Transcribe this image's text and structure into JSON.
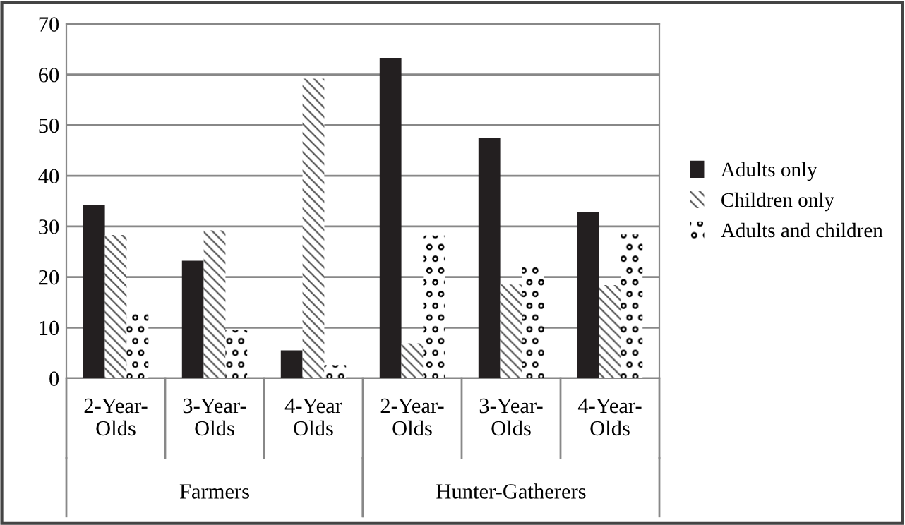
{
  "chart_data": {
    "type": "bar",
    "categories": [
      "2-Year-\nOlds",
      "3-Year-\nOlds",
      "4-Year\nOlds",
      "2-Year-\nOlds",
      "3-Year-\nOlds",
      "4-Year-\nOlds"
    ],
    "annotations": [
      "Farmers",
      "Hunter-Gatherers"
    ],
    "series": [
      {
        "name": "Adults only",
        "color": "#231f20",
        "values": [
          34.3,
          23.2,
          5.5,
          63.3,
          47.4,
          32.9
        ]
      },
      {
        "name": "Children only",
        "color": "#555555",
        "values": [
          28.3,
          29.2,
          59.2,
          6.9,
          18.5,
          18.4
        ]
      },
      {
        "name": "Adults and children",
        "color": "#000000",
        "values": [
          13.6,
          9.5,
          2.6,
          28.2,
          22.8,
          28.4
        ]
      }
    ],
    "ylim": [
      0,
      70
    ],
    "yticks": [
      0,
      10,
      20,
      30,
      40,
      50,
      60,
      70
    ],
    "grid": "y",
    "legend": "right"
  }
}
